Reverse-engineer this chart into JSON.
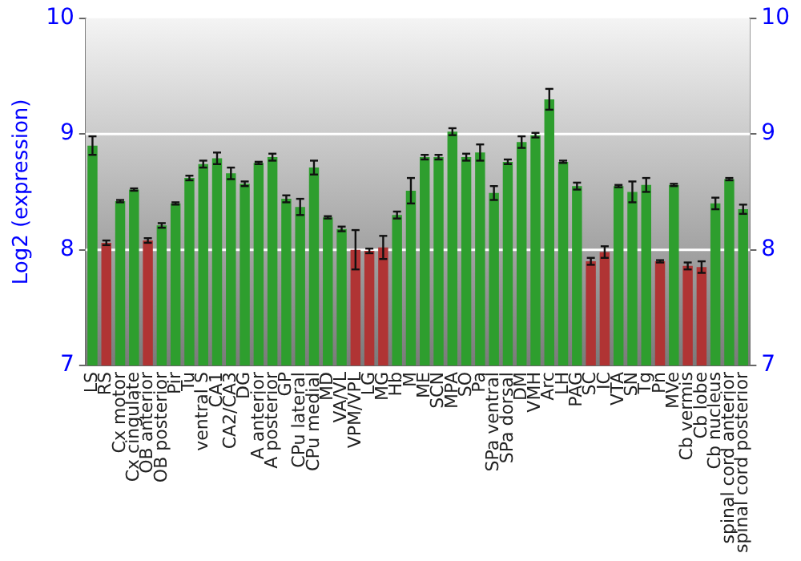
{
  "chart_data": {
    "type": "bar",
    "ylabel": "Log2 (expression)",
    "categories": [
      "LS",
      "RS",
      "Cx motor",
      "Cx cingulate",
      "OB anterior",
      "OB posterior",
      "Pir",
      "Tu",
      "ventral S",
      "CA1",
      "CA2/CA3",
      "DG",
      "A anterior",
      "A posterior",
      "GP",
      "CPu lateral",
      "CPu medial",
      "MD",
      "VA/VL",
      "VPM/VPL",
      "LG",
      "MG",
      "Hb",
      "M",
      "ME",
      "SCN",
      "MPA",
      "SO",
      "Pa",
      "SPa ventral",
      "SPa dorsal",
      "DM",
      "VMH",
      "Arc",
      "LH",
      "PAG",
      "SC",
      "IC",
      "VTA",
      "SN",
      "Tg",
      "Pn",
      "MVe",
      "Cb vermis",
      "Cb lobe",
      "Cb nucleus",
      "spinal cord anterior",
      "spinal cord posterior"
    ],
    "values": [
      8.9,
      8.06,
      8.42,
      8.52,
      8.08,
      8.21,
      8.4,
      8.62,
      8.74,
      8.79,
      8.66,
      8.57,
      8.75,
      8.8,
      8.44,
      8.37,
      8.71,
      8.28,
      8.18,
      8.0,
      7.99,
      8.02,
      8.3,
      8.51,
      8.8,
      8.8,
      9.02,
      8.8,
      8.84,
      8.49,
      8.76,
      8.93,
      8.99,
      9.3,
      8.76,
      8.55,
      7.9,
      7.98,
      8.55,
      8.5,
      8.56,
      7.9,
      8.56,
      7.86,
      7.85,
      8.4,
      8.61,
      8.35
    ],
    "errors": [
      0.08,
      0.02,
      0.01,
      0.01,
      0.02,
      0.02,
      0.01,
      0.02,
      0.03,
      0.05,
      0.05,
      0.02,
      0.01,
      0.03,
      0.03,
      0.07,
      0.06,
      0.01,
      0.02,
      0.17,
      0.02,
      0.1,
      0.03,
      0.11,
      0.02,
      0.02,
      0.03,
      0.03,
      0.07,
      0.06,
      0.02,
      0.05,
      0.02,
      0.09,
      0.01,
      0.03,
      0.03,
      0.05,
      0.01,
      0.09,
      0.06,
      0.01,
      0.01,
      0.03,
      0.05,
      0.05,
      0.01,
      0.04
    ],
    "colors": [
      "#2e9e2e",
      "#b03434",
      "#2e9e2e",
      "#2e9e2e",
      "#b03434",
      "#2e9e2e",
      "#2e9e2e",
      "#2e9e2e",
      "#2e9e2e",
      "#2e9e2e",
      "#2e9e2e",
      "#2e9e2e",
      "#2e9e2e",
      "#2e9e2e",
      "#2e9e2e",
      "#2e9e2e",
      "#2e9e2e",
      "#2e9e2e",
      "#2e9e2e",
      "#b03434",
      "#b03434",
      "#b03434",
      "#2e9e2e",
      "#2e9e2e",
      "#2e9e2e",
      "#2e9e2e",
      "#2e9e2e",
      "#2e9e2e",
      "#2e9e2e",
      "#2e9e2e",
      "#2e9e2e",
      "#2e9e2e",
      "#2e9e2e",
      "#2e9e2e",
      "#2e9e2e",
      "#2e9e2e",
      "#b03434",
      "#b03434",
      "#2e9e2e",
      "#2e9e2e",
      "#2e9e2e",
      "#b03434",
      "#2e9e2e",
      "#b03434",
      "#b03434",
      "#2e9e2e",
      "#2e9e2e",
      "#2e9e2e"
    ],
    "ylim": [
      7,
      10
    ],
    "yticks": [
      7,
      8,
      9,
      10
    ],
    "y2lim": [
      7,
      10
    ],
    "y2ticks": [
      7,
      8,
      9,
      10
    ],
    "grid": "y",
    "legend": false
  }
}
